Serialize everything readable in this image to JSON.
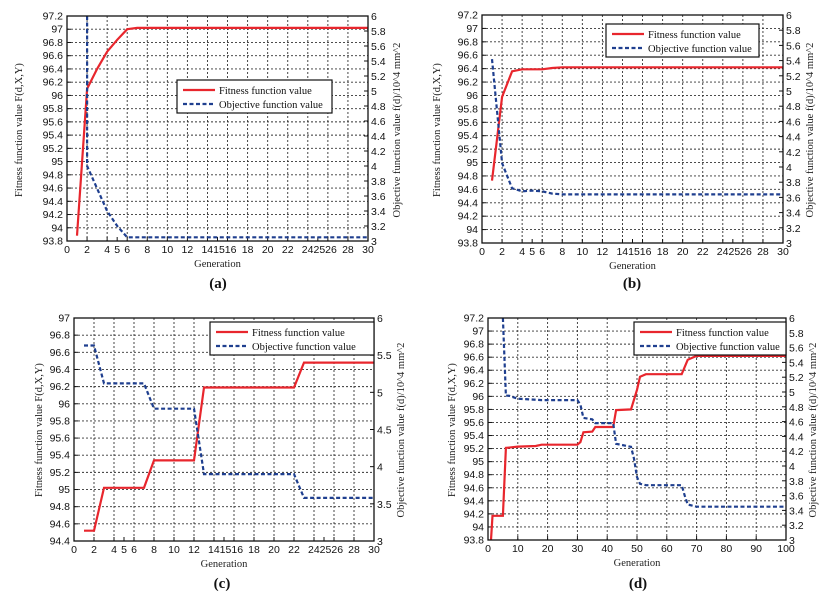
{
  "colors": {
    "fitness": "#e8262d",
    "objective": "#1f3f8f",
    "grid": "#222222"
  },
  "chart_data": [
    {
      "type": "line",
      "panel_label": "(a)",
      "xlabel": "Generation",
      "ylabel": "Fitness function value  F(d,X,Y)",
      "y2label": "Objective function value  f(d)/10^4 mm^2",
      "xlim": [
        0,
        30
      ],
      "ylim": [
        93.8,
        97.2
      ],
      "y2lim": [
        3,
        6
      ],
      "xticks": [
        0,
        2,
        4,
        5,
        6,
        8,
        10,
        12,
        14,
        15,
        16,
        18,
        20,
        22,
        24,
        25,
        26,
        28,
        30
      ],
      "xtick_labels": [
        "0",
        "2",
        "4",
        "5",
        "6",
        "8",
        "10",
        "12",
        "141516",
        "",
        "",
        "18",
        "20",
        "22",
        "242526",
        "",
        "",
        "28",
        "30"
      ],
      "yticks": [
        93.8,
        94,
        94.2,
        94.4,
        94.6,
        94.8,
        95,
        95.2,
        95.4,
        95.6,
        95.8,
        96,
        96.2,
        96.4,
        96.6,
        96.8,
        97,
        97.2
      ],
      "y2ticks": [
        3,
        3.2,
        3.4,
        3.6,
        3.8,
        4,
        4.2,
        4.4,
        4.6,
        4.8,
        5,
        5.2,
        5.4,
        5.6,
        5.8,
        6
      ],
      "legend": {
        "placement": "center",
        "entries": [
          "Fitness function value",
          "Objective function value"
        ]
      },
      "series": [
        {
          "name": "Fitness function value",
          "axis": "left",
          "style": "solid",
          "x": [
            1,
            2,
            3,
            4,
            5,
            6,
            7,
            30
          ],
          "y": [
            93.88,
            96.1,
            96.4,
            96.66,
            96.84,
            97.0,
            97.02,
            97.02
          ]
        },
        {
          "name": "Objective function value",
          "axis": "right",
          "style": "dashed",
          "x": [
            2,
            2,
            3,
            4,
            5,
            6,
            7,
            30
          ],
          "y": [
            6.0,
            4.0,
            3.7,
            3.4,
            3.2,
            3.05,
            3.05,
            3.05
          ]
        }
      ]
    },
    {
      "type": "line",
      "panel_label": "(b)",
      "xlabel": "Generation",
      "ylabel": "Fitness function value  F(d,X,Y)",
      "y2label": "Objective function value  f(d)/10^4 mm^2",
      "xlim": [
        0,
        30
      ],
      "ylim": [
        93.8,
        97.2
      ],
      "y2lim": [
        3,
        6
      ],
      "xticks": [
        0,
        2,
        4,
        5,
        6,
        8,
        10,
        12,
        14,
        15,
        16,
        18,
        20,
        22,
        24,
        25,
        26,
        28,
        30
      ],
      "xtick_labels": [
        "0",
        "2",
        "4",
        "5",
        "6",
        "8",
        "10",
        "12",
        "141516",
        "",
        "",
        "18",
        "20",
        "22",
        "242526",
        "",
        "",
        "28",
        "30"
      ],
      "yticks": [
        93.8,
        94,
        94.2,
        94.4,
        94.6,
        94.8,
        95,
        95.2,
        95.4,
        95.6,
        95.8,
        96,
        96.2,
        96.4,
        96.6,
        96.8,
        97,
        97.2
      ],
      "y2ticks": [
        3,
        3.2,
        3.4,
        3.6,
        3.8,
        4,
        4.2,
        4.4,
        4.6,
        4.8,
        5,
        5.2,
        5.4,
        5.6,
        5.8,
        6
      ],
      "legend": {
        "placement": "top-right",
        "entries": [
          "Fitness function value",
          "Objective function value"
        ]
      },
      "series": [
        {
          "name": "Fitness function value",
          "axis": "left",
          "style": "solid",
          "x": [
            1,
            2,
            3,
            4,
            5,
            6,
            7,
            8,
            30
          ],
          "y": [
            94.73,
            95.98,
            96.36,
            96.39,
            96.39,
            96.39,
            96.41,
            96.42,
            96.42
          ]
        },
        {
          "name": "Objective function value",
          "axis": "right",
          "style": "dashed",
          "x": [
            1,
            2,
            3,
            4,
            5,
            6,
            7,
            8,
            30
          ],
          "y": [
            5.42,
            4.05,
            3.72,
            3.68,
            3.69,
            3.68,
            3.65,
            3.64,
            3.64
          ]
        }
      ]
    },
    {
      "type": "line",
      "panel_label": "(c)",
      "xlabel": "Generation",
      "ylabel": "Fitness function value  F(d,X,Y)",
      "y2label": "Objective function value  f(d)/10^4 mm^2",
      "xlim": [
        0,
        30
      ],
      "ylim": [
        94.4,
        97
      ],
      "y2lim": [
        3,
        6
      ],
      "xticks": [
        0,
        2,
        4,
        5,
        6,
        8,
        10,
        12,
        14,
        15,
        16,
        18,
        20,
        22,
        24,
        25,
        26,
        28,
        30
      ],
      "xtick_labels": [
        "0",
        "2",
        "4",
        "5",
        "6",
        "8",
        "10",
        "12",
        "141516",
        "",
        "",
        "18",
        "20",
        "22",
        "242526",
        "",
        "",
        "28",
        "30"
      ],
      "yticks": [
        94.4,
        94.6,
        94.8,
        95,
        95.2,
        95.4,
        95.6,
        95.8,
        96,
        96.2,
        96.4,
        96.6,
        96.8,
        97
      ],
      "y2ticks": [
        3,
        3.5,
        4,
        4.5,
        5,
        5.5,
        6
      ],
      "legend": {
        "placement": "top-right",
        "entries": [
          "Fitness function value",
          "Objective function value"
        ]
      },
      "series": [
        {
          "name": "Fitness function value",
          "axis": "left",
          "style": "solid",
          "x": [
            1,
            2,
            3,
            7,
            8,
            12,
            13,
            22,
            23,
            30
          ],
          "y": [
            94.52,
            94.52,
            95.02,
            95.02,
            95.34,
            95.34,
            96.19,
            96.19,
            96.48,
            96.48
          ]
        },
        {
          "name": "Objective function value",
          "axis": "right",
          "style": "dashed",
          "x": [
            1,
            2,
            3,
            7,
            8,
            12,
            13,
            22,
            23,
            30
          ],
          "y": [
            5.63,
            5.63,
            5.12,
            5.12,
            4.78,
            4.78,
            3.9,
            3.9,
            3.58,
            3.58
          ]
        }
      ]
    },
    {
      "type": "line",
      "panel_label": "(d)",
      "xlabel": "Generation",
      "ylabel": "Fitness function value  F(d,X,Y)",
      "y2label": "Objective function value  f(d)/10^4 mm^2",
      "xlim": [
        0,
        100
      ],
      "ylim": [
        93.8,
        97.2
      ],
      "y2lim": [
        3,
        6
      ],
      "xticks": [
        0,
        10,
        20,
        30,
        40,
        50,
        60,
        70,
        80,
        90,
        100
      ],
      "xtick_labels": [
        "0",
        "10",
        "20",
        "30",
        "40",
        "50",
        "60",
        "70",
        "80",
        "90",
        "100"
      ],
      "yticks": [
        93.8,
        94,
        94.2,
        94.4,
        94.6,
        94.8,
        95,
        95.2,
        95.4,
        95.6,
        95.8,
        96,
        96.2,
        96.4,
        96.6,
        96.8,
        97,
        97.2
      ],
      "y2ticks": [
        3,
        3.2,
        3.4,
        3.6,
        3.8,
        4,
        4.2,
        4.4,
        4.6,
        4.8,
        5,
        5.2,
        5.4,
        5.6,
        5.8,
        6
      ],
      "legend": {
        "placement": "top-right",
        "entries": [
          "Fitness function value",
          "Objective function value"
        ]
      },
      "series": [
        {
          "name": "Fitness function value",
          "axis": "left",
          "style": "solid",
          "x": [
            1,
            1.5,
            5,
            6,
            10,
            16,
            18,
            30,
            31,
            32,
            35,
            36,
            42,
            43,
            48,
            50,
            51,
            53,
            65,
            67,
            70,
            100
          ],
          "y": [
            93.8,
            94.17,
            94.17,
            95.21,
            95.23,
            95.24,
            95.26,
            95.26,
            95.3,
            95.45,
            95.46,
            95.53,
            95.53,
            95.79,
            95.8,
            96.1,
            96.3,
            96.34,
            96.34,
            96.56,
            96.62,
            96.62
          ]
        },
        {
          "name": "Objective function value",
          "axis": "right",
          "style": "dashed",
          "x": [
            5,
            6,
            7,
            10,
            18,
            30,
            31,
            32,
            35,
            36,
            42,
            43,
            48,
            49,
            50,
            51,
            53,
            65,
            66,
            67,
            70,
            100
          ],
          "y": [
            6.0,
            4.95,
            4.95,
            4.91,
            4.89,
            4.89,
            4.83,
            4.65,
            4.63,
            4.58,
            4.58,
            4.3,
            4.26,
            4.1,
            3.85,
            3.76,
            3.74,
            3.74,
            3.6,
            3.48,
            3.45,
            3.45
          ]
        }
      ]
    }
  ]
}
